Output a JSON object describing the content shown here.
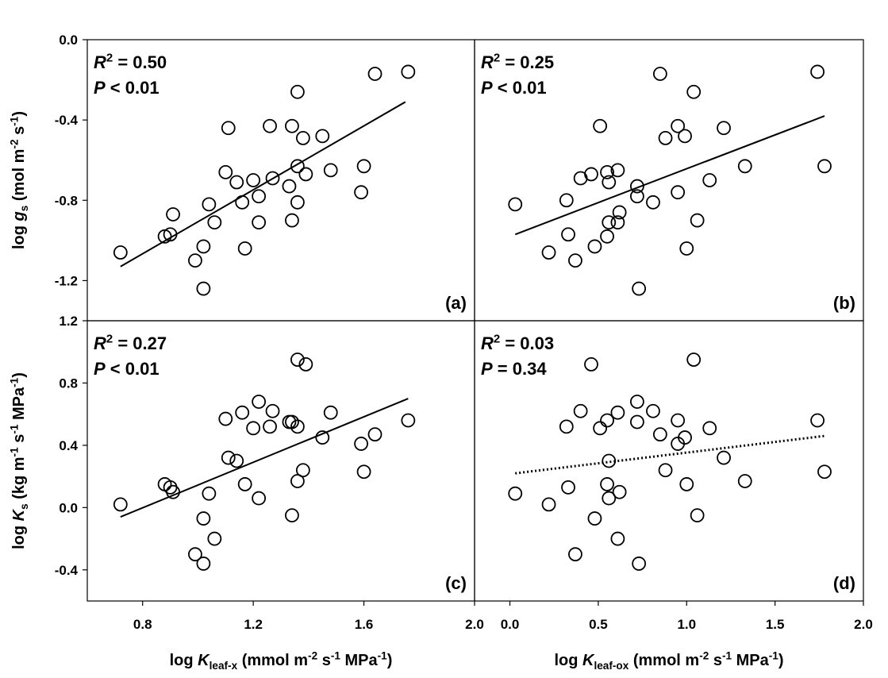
{
  "chart_data": [
    {
      "type": "scatter",
      "xlim": [
        0.6,
        2.0
      ],
      "ylim": [
        -1.4,
        0.0
      ],
      "yticks": [
        {
          "value": 0,
          "label": "0.0"
        },
        -0.4,
        -0.8,
        -1.2
      ],
      "ylabel": [
        {
          "text": "log "
        },
        {
          "text": "g",
          "style": "italic"
        },
        {
          "text": "s",
          "shift": "sub"
        },
        {
          "text": " (mol m"
        },
        {
          "text": "-2",
          "shift": "sup"
        },
        {
          "text": " s"
        },
        {
          "text": "-1",
          "shift": "sup"
        },
        {
          "text": ")"
        }
      ],
      "annotations": [
        [
          {
            "text": "R",
            "style": "italic"
          },
          {
            "text": "2",
            "shift": "sup"
          },
          {
            "text": " = 0.50"
          }
        ],
        [
          {
            "text": "P",
            "style": "italic"
          },
          {
            "text": " < 0.01"
          }
        ]
      ],
      "panel_label": "(a)",
      "color": "#000000",
      "x": [
        0.72,
        0.88,
        0.9,
        0.91,
        1.04,
        1.06,
        0.99,
        1.02,
        1.02,
        1.1,
        1.11,
        1.14,
        1.16,
        1.17,
        1.2,
        1.22,
        1.22,
        1.27,
        1.26,
        1.33,
        1.34,
        1.34,
        1.36,
        1.36,
        1.36,
        1.38,
        1.39,
        1.45,
        1.48,
        1.6,
        1.59,
        1.64,
        1.76
      ],
      "values": [
        -1.06,
        -0.98,
        -0.97,
        -0.87,
        -0.82,
        -0.91,
        -1.1,
        -1.03,
        -1.24,
        -0.66,
        -0.44,
        -0.71,
        -0.81,
        -1.04,
        -0.7,
        -0.78,
        -0.91,
        -0.69,
        -0.43,
        -0.73,
        -0.43,
        -0.9,
        -0.26,
        -0.63,
        -0.81,
        -0.49,
        -0.67,
        -0.48,
        -0.65,
        -0.63,
        -0.76,
        -0.17,
        -0.16
      ],
      "fit": {
        "x": [
          0.72,
          1.75
        ],
        "values": [
          -1.13,
          -0.31
        ],
        "style": "solid"
      }
    },
    {
      "type": "scatter",
      "xlim": [
        -0.2,
        2.0
      ],
      "ylim": [
        -1.4,
        0.0
      ],
      "annotations": [
        [
          {
            "text": "R",
            "style": "italic"
          },
          {
            "text": "2",
            "shift": "sup"
          },
          {
            "text": " = 0.25"
          }
        ],
        [
          {
            "text": "P",
            "style": "italic"
          },
          {
            "text": " < 0.01"
          }
        ]
      ],
      "panel_label": "(b)",
      "color": "#000000",
      "x": [
        0.03,
        0.22,
        0.32,
        0.33,
        0.37,
        0.4,
        0.46,
        0.48,
        0.51,
        0.55,
        0.55,
        0.56,
        0.56,
        0.61,
        0.62,
        0.61,
        0.72,
        0.72,
        0.73,
        0.81,
        0.85,
        0.88,
        0.95,
        0.95,
        0.99,
        1.0,
        1.04,
        1.06,
        1.13,
        1.21,
        1.33,
        1.74,
        1.78
      ],
      "values": [
        -0.82,
        -1.06,
        -0.8,
        -0.97,
        -1.1,
        -0.69,
        -0.67,
        -1.03,
        -0.43,
        -0.66,
        -0.98,
        -0.71,
        -0.91,
        -0.65,
        -0.86,
        -0.91,
        -0.73,
        -0.78,
        -1.24,
        -0.81,
        -0.17,
        -0.49,
        -0.43,
        -0.76,
        -0.48,
        -1.04,
        -0.26,
        -0.9,
        -0.7,
        -0.44,
        -0.63,
        -0.16,
        -0.63
      ],
      "fit": {
        "x": [
          0.03,
          1.78
        ],
        "values": [
          -0.97,
          -0.38
        ],
        "style": "solid"
      }
    },
    {
      "type": "scatter",
      "xlim": [
        0.6,
        2.0
      ],
      "ylim": [
        -0.6,
        1.2
      ],
      "xticks": [
        0.8,
        1.2,
        1.6,
        {
          "value": 2,
          "label": "2.0"
        }
      ],
      "yticks": [
        -0.4,
        {
          "value": 0,
          "label": "0.0"
        },
        0.4,
        0.8,
        1.2
      ],
      "xlabel": [
        {
          "text": "log "
        },
        {
          "text": "K",
          "style": "italic"
        },
        {
          "text": "leaf-x",
          "shift": "sub"
        },
        {
          "text": " (mmol m"
        },
        {
          "text": "-2",
          "shift": "sup"
        },
        {
          "text": " s"
        },
        {
          "text": "-1",
          "shift": "sup"
        },
        {
          "text": " MPa"
        },
        {
          "text": "-1",
          "shift": "sup"
        },
        {
          "text": ")"
        }
      ],
      "ylabel": [
        {
          "text": "log "
        },
        {
          "text": "K",
          "style": "italic"
        },
        {
          "text": "s",
          "shift": "sub"
        },
        {
          "text": " (kg m"
        },
        {
          "text": "-1",
          "shift": "sup"
        },
        {
          "text": " s"
        },
        {
          "text": "-1",
          "shift": "sup"
        },
        {
          "text": " MPa"
        },
        {
          "text": "-1",
          "shift": "sup"
        },
        {
          "text": ")"
        }
      ],
      "annotations": [
        [
          {
            "text": "R",
            "style": "italic"
          },
          {
            "text": "2",
            "shift": "sup"
          },
          {
            "text": " = 0.27"
          }
        ],
        [
          {
            "text": "P",
            "style": "italic"
          },
          {
            "text": " < 0.01"
          }
        ]
      ],
      "panel_label": "(c)",
      "color": "#000000",
      "x": [
        0.72,
        0.88,
        0.9,
        0.91,
        0.99,
        1.02,
        1.02,
        1.04,
        1.06,
        1.1,
        1.11,
        1.14,
        1.16,
        1.17,
        1.2,
        1.22,
        1.22,
        1.27,
        1.26,
        1.33,
        1.34,
        1.34,
        1.36,
        1.36,
        1.36,
        1.38,
        1.39,
        1.45,
        1.48,
        1.59,
        1.6,
        1.64,
        1.76
      ],
      "values": [
        0.02,
        0.15,
        0.13,
        0.1,
        -0.3,
        -0.07,
        -0.36,
        0.09,
        -0.2,
        0.57,
        0.32,
        0.3,
        0.61,
        0.15,
        0.51,
        0.68,
        0.06,
        0.62,
        0.52,
        0.55,
        0.55,
        -0.05,
        0.95,
        0.17,
        0.52,
        0.24,
        0.92,
        0.45,
        0.61,
        0.41,
        0.23,
        0.47,
        0.56
      ],
      "fit": {
        "x": [
          0.72,
          1.76
        ],
        "values": [
          -0.06,
          0.7
        ],
        "style": "solid"
      }
    },
    {
      "type": "scatter",
      "xlim": [
        -0.2,
        2.0
      ],
      "ylim": [
        -0.6,
        1.2
      ],
      "xticks": [
        {
          "value": 0,
          "label": "0.0"
        },
        0.5,
        {
          "value": 1,
          "label": "1.0"
        },
        1.5,
        {
          "value": 2,
          "label": "2.0"
        }
      ],
      "xlabel": [
        {
          "text": "log "
        },
        {
          "text": "K",
          "style": "italic"
        },
        {
          "text": "leaf-ox",
          "shift": "sub"
        },
        {
          "text": " (mmol m"
        },
        {
          "text": "-2",
          "shift": "sup"
        },
        {
          "text": " s"
        },
        {
          "text": "-1",
          "shift": "sup"
        },
        {
          "text": " MPa"
        },
        {
          "text": "-1",
          "shift": "sup"
        },
        {
          "text": ")"
        }
      ],
      "annotations": [
        [
          {
            "text": "R",
            "style": "italic"
          },
          {
            "text": "2",
            "shift": "sup"
          },
          {
            "text": " = 0.03"
          }
        ],
        [
          {
            "text": "P",
            "style": "italic"
          },
          {
            "text": " = 0.34"
          }
        ]
      ],
      "panel_label": "(d)",
      "color": "#000000",
      "x": [
        0.03,
        0.22,
        0.32,
        0.33,
        0.37,
        0.4,
        0.46,
        0.48,
        0.51,
        0.55,
        0.55,
        0.56,
        0.56,
        0.61,
        0.62,
        0.61,
        0.72,
        0.72,
        0.73,
        0.81,
        0.85,
        0.88,
        0.95,
        0.95,
        0.99,
        1.0,
        1.04,
        1.06,
        1.13,
        1.21,
        1.33,
        1.74,
        1.78
      ],
      "values": [
        0.09,
        0.02,
        0.52,
        0.13,
        -0.3,
        0.62,
        0.92,
        -0.07,
        0.51,
        0.15,
        0.56,
        0.3,
        0.06,
        0.61,
        0.1,
        -0.2,
        0.68,
        0.55,
        -0.36,
        0.62,
        0.47,
        0.24,
        0.41,
        0.56,
        0.45,
        0.15,
        0.95,
        -0.05,
        0.51,
        0.32,
        0.17,
        0.56,
        0.23
      ],
      "fit": {
        "x": [
          0.03,
          1.78
        ],
        "values": [
          0.22,
          0.46
        ],
        "style": "dotted"
      }
    }
  ]
}
